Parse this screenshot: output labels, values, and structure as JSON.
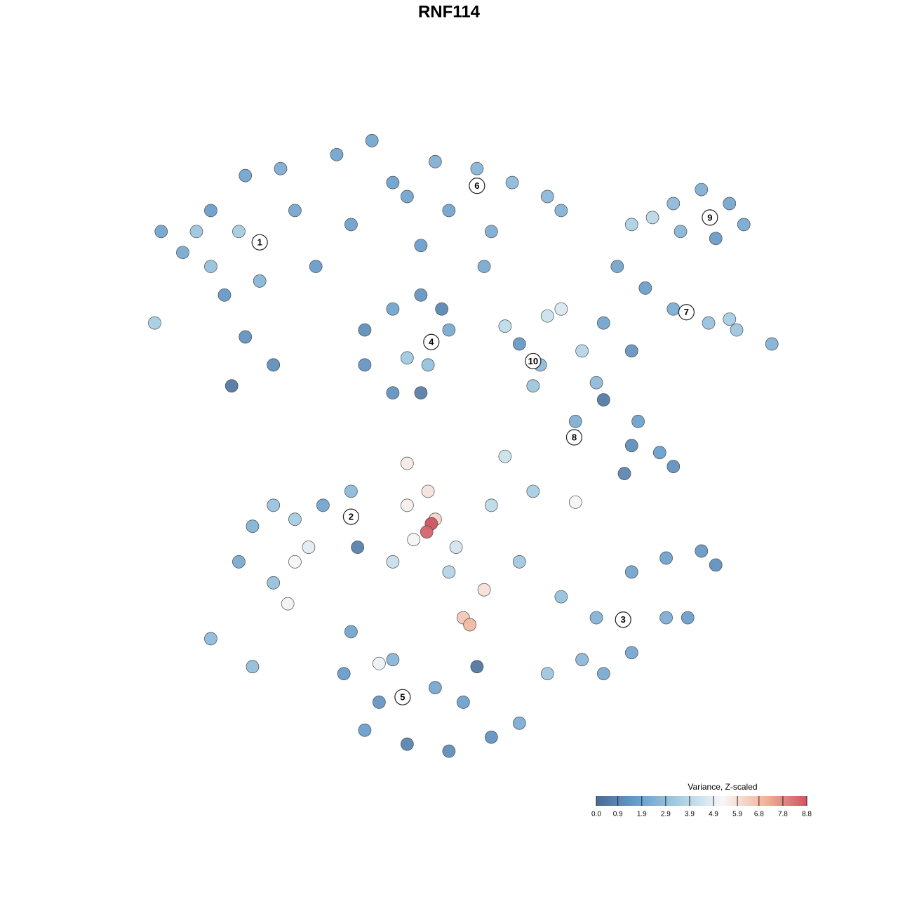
{
  "chart_data": {
    "type": "scatter",
    "title": "RNF114",
    "xlim": [
      0,
      100
    ],
    "ylim": [
      0,
      100
    ],
    "x": [
      3.2,
      6.5,
      10.8,
      16.1,
      21.5,
      12.9,
      16.1,
      14.0,
      18.3,
      10.8,
      23.7,
      26.9,
      20.4,
      2.2,
      8.6,
      15.1,
      30.1,
      35.5,
      38.7,
      45.2,
      51.6,
      57.0,
      62.4,
      64.5,
      53.8,
      47.3,
      32.3,
      43.0,
      52.7,
      40.9,
      34.4,
      38.7,
      43.0,
      47.3,
      40.9,
      44.1,
      38.7,
      43.0,
      34.4,
      46.2,
      58.1,
      61.3,
      60.2,
      62.4,
      64.5,
      55.9,
      75.3,
      78.5,
      81.7,
      86.0,
      90.3,
      92.5,
      88.2,
      82.8,
      73.1,
      77.4,
      81.7,
      87.1,
      91.4,
      96.8,
      90.3,
      75.3,
      71.0,
      67.7,
      71.0,
      75.3,
      79.6,
      81.7,
      74.2,
      66.7,
      76.3,
      69.9,
      17.2,
      20.4,
      23.7,
      28.0,
      32.3,
      15.1,
      23.7,
      25.8,
      20.4,
      33.3,
      10.8,
      17.2,
      22.6,
      40.9,
      44.1,
      45.2,
      44.6,
      43.9,
      41.9,
      48.4,
      53.8,
      55.9,
      60.2,
      40.9,
      38.7,
      49.5,
      50.5,
      52.7,
      66.7,
      47.3,
      58.1,
      64.5,
      69.9,
      75.3,
      80.6,
      86.0,
      88.2,
      80.6,
      75.3,
      67.7,
      62.4,
      71.0,
      83.9,
      32.3,
      31.2,
      36.6,
      40.9,
      47.3,
      53.8,
      58.1,
      45.2,
      38.7,
      34.4,
      49.5,
      51.6,
      36.6
    ],
    "y": [
      84.0,
      80.7,
      87.3,
      92.8,
      93.9,
      74.0,
      67.4,
      59.7,
      76.2,
      78.5,
      87.3,
      78.5,
      63.0,
      69.6,
      84.0,
      84.0,
      96.1,
      98.3,
      91.7,
      95.0,
      93.9,
      91.7,
      89.5,
      87.3,
      84.0,
      87.3,
      85.1,
      81.8,
      78.5,
      89.5,
      68.5,
      71.8,
      74.0,
      68.5,
      64.1,
      63.0,
      58.6,
      58.6,
      63.0,
      71.8,
      66.3,
      63.0,
      59.7,
      70.7,
      71.8,
      69.1,
      85.1,
      86.2,
      88.4,
      90.6,
      88.4,
      85.1,
      82.9,
      84.0,
      78.5,
      75.1,
      71.8,
      69.6,
      68.5,
      66.3,
      70.2,
      65.2,
      69.6,
      65.2,
      57.5,
      50.3,
      49.2,
      47.0,
      45.9,
      54.1,
      54.1,
      60.2,
      37.6,
      40.9,
      38.7,
      40.9,
      43.1,
      32.0,
      32.0,
      34.3,
      28.7,
      34.3,
      19.9,
      15.5,
      25.4,
      40.9,
      43.1,
      38.7,
      38.0,
      36.7,
      35.5,
      34.3,
      40.9,
      48.6,
      43.1,
      47.5,
      32.0,
      23.2,
      22.1,
      27.6,
      41.4,
      30.4,
      32.0,
      26.5,
      23.2,
      30.4,
      32.6,
      33.7,
      31.5,
      23.2,
      17.7,
      16.6,
      14.4,
      14.4,
      23.2,
      21.0,
      14.4,
      9.9,
      3.3,
      2.2,
      4.4,
      6.6,
      12.2,
      16.6,
      5.5,
      9.9,
      15.5,
      16.0
    ],
    "values": [
      2.0,
      2.2,
      1.8,
      2.0,
      2.3,
      1.6,
      1.4,
      0.5,
      2.6,
      3.0,
      2.1,
      1.7,
      1.2,
      3.5,
      3.2,
      3.4,
      2.0,
      2.1,
      1.9,
      2.4,
      2.6,
      2.8,
      2.7,
      2.5,
      2.3,
      2.0,
      1.9,
      1.8,
      2.2,
      2.0,
      1.2,
      2.0,
      1.5,
      2.2,
      3.3,
      3.0,
      1.4,
      0.7,
      1.5,
      1.0,
      1.6,
      2.8,
      3.2,
      4.3,
      4.6,
      4.0,
      3.6,
      3.9,
      2.8,
      2.4,
      2.1,
      2.2,
      1.7,
      2.6,
      2.0,
      1.8,
      2.3,
      3.1,
      3.2,
      2.5,
      3.5,
      1.5,
      2.0,
      3.8,
      0.6,
      1.2,
      1.8,
      1.3,
      1.0,
      2.4,
      1.9,
      2.8,
      2.5,
      3.1,
      3.4,
      2.0,
      2.8,
      2.2,
      5.3,
      4.8,
      3.0,
      0.8,
      2.8,
      2.9,
      5.1,
      5.5,
      5.8,
      6.2,
      8.8,
      8.5,
      5.2,
      4.5,
      4.0,
      4.3,
      3.5,
      5.6,
      4.2,
      6.5,
      6.9,
      5.9,
      5.4,
      3.8,
      3.3,
      3.0,
      2.5,
      2.0,
      1.9,
      1.6,
      1.3,
      2.3,
      2.1,
      2.7,
      3.2,
      2.2,
      1.8,
      2.0,
      1.7,
      1.5,
      0.9,
      1.2,
      1.4,
      2.3,
      2.1,
      2.6,
      1.8,
      1.9,
      0.4,
      5.0
    ],
    "clusters": [
      {
        "label": "1",
        "x": 18.3,
        "y": 82.3
      },
      {
        "label": "6",
        "x": 51.6,
        "y": 91.2
      },
      {
        "label": "4",
        "x": 44.6,
        "y": 66.6
      },
      {
        "label": "10",
        "x": 60.2,
        "y": 63.6
      },
      {
        "label": "9",
        "x": 87.3,
        "y": 86.2
      },
      {
        "label": "7",
        "x": 83.7,
        "y": 71.3
      },
      {
        "label": "8",
        "x": 66.5,
        "y": 51.6
      },
      {
        "label": "2",
        "x": 32.3,
        "y": 39.1
      },
      {
        "label": "3",
        "x": 74.0,
        "y": 22.9
      },
      {
        "label": "5",
        "x": 40.2,
        "y": 10.7
      }
    ],
    "colorbar": {
      "title": "Variance, Z-scaled",
      "lim": [
        0,
        8.8
      ],
      "ticks": [
        {
          "value": 0,
          "label": "0.0"
        },
        0.9,
        1.9,
        2.9,
        3.9,
        4.9,
        5.9,
        6.8,
        7.8,
        8.8
      ],
      "colors": [
        "#4a6b94",
        "#6a9ecb",
        "#a9cfe4",
        "#f7f7f7",
        "#f2b59b",
        "#cf5461"
      ]
    }
  }
}
